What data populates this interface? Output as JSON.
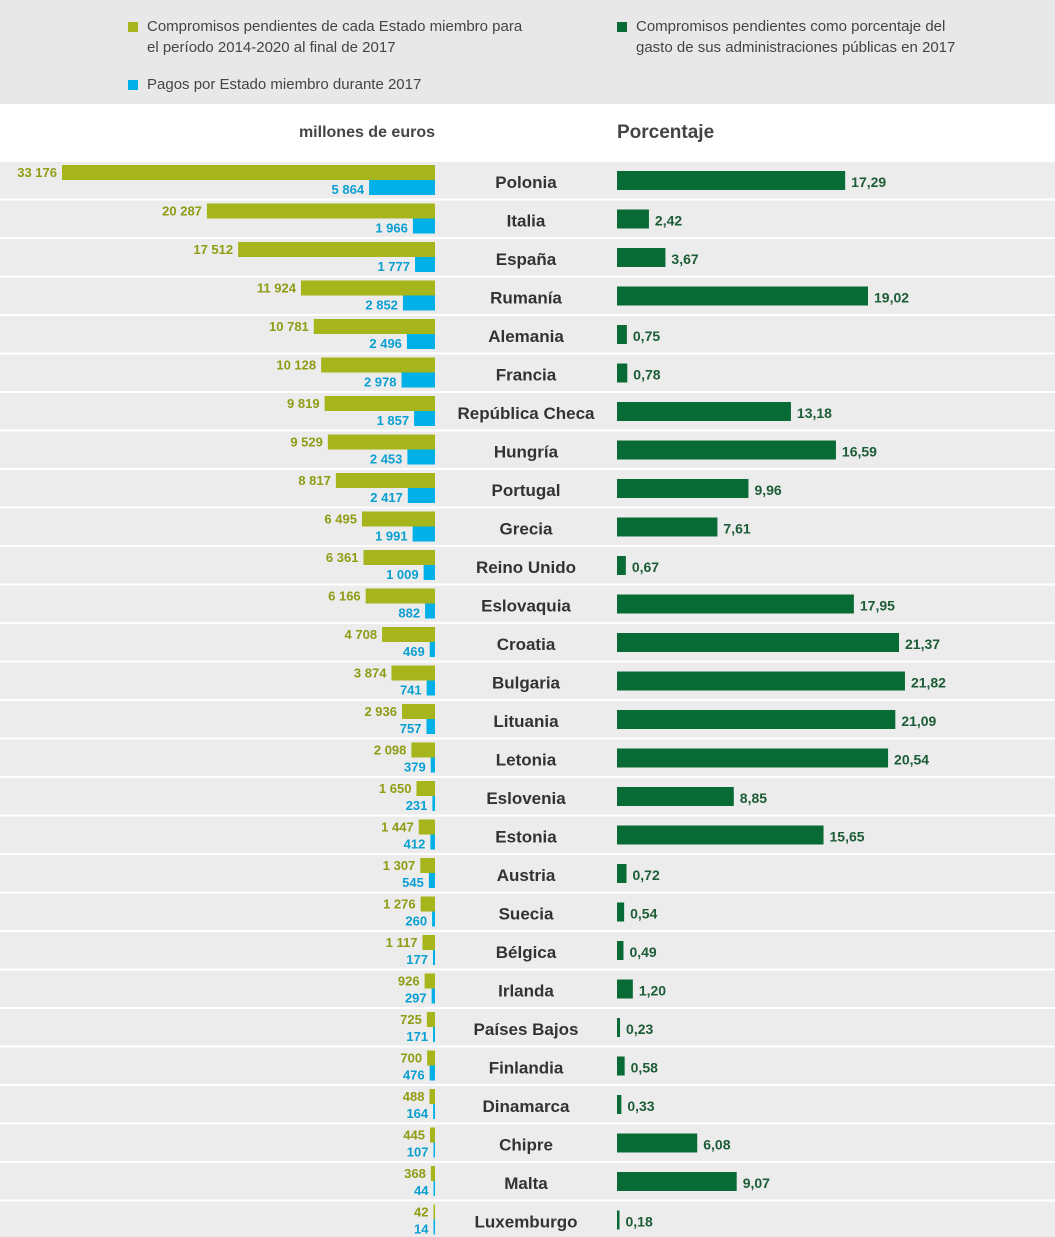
{
  "legend": {
    "commitments": "Compromisos pendientes de cada Estado miembro para el período 2014-2020 al final de 2017",
    "payments": "Pagos por Estado miembro durante 2017",
    "percentage": "Compromisos pendientes como porcentaje del gasto de sus administraciones públicas en 2017"
  },
  "headers": {
    "left": "millones de euros",
    "right": "Porcentaje"
  },
  "colors": {
    "commitments": "#a6b51b",
    "payments": "#00b0e6",
    "percentage": "#086b35",
    "row_band": "#ececec"
  },
  "chart_data": {
    "type": "bar",
    "categories": [
      "Polonia",
      "Italia",
      "España",
      "Rumanía",
      "Alemania",
      "Francia",
      "República Checa",
      "Hungría",
      "Portugal",
      "Grecia",
      "Reino Unido",
      "Eslovaquia",
      "Croatia",
      "Bulgaria",
      "Lituania",
      "Letonia",
      "Eslovenia",
      "Estonia",
      "Austria",
      "Suecia",
      "Bélgica",
      "Irlanda",
      "Países Bajos",
      "Finlandia",
      "Dinamarca",
      "Chipre",
      "Malta",
      "Luxemburgo"
    ],
    "series": [
      {
        "name": "Compromisos pendientes de cada Estado miembro para el período 2014-2020 al final de 2017",
        "unit": "millones de euros",
        "values": [
          33176,
          20287,
          17512,
          11924,
          10781,
          10128,
          9819,
          9529,
          8817,
          6495,
          6361,
          6166,
          4708,
          3874,
          2936,
          2098,
          1650,
          1447,
          1307,
          1276,
          1117,
          926,
          725,
          700,
          488,
          445,
          368,
          42
        ],
        "labels": [
          "33 176",
          "20 287",
          "17 512",
          "11 924",
          "10 781",
          "10 128",
          "9 819",
          "9 529",
          "8 817",
          "6 495",
          "6 361",
          "6 166",
          "4 708",
          "3 874",
          "2 936",
          "2 098",
          "1 650",
          "1 447",
          "1 307",
          "1 276",
          "1 117",
          "926",
          "725",
          "700",
          "488",
          "445",
          "368",
          "42"
        ]
      },
      {
        "name": "Pagos por Estado miembro durante 2017",
        "unit": "millones de euros",
        "values": [
          5864,
          1966,
          1777,
          2852,
          2496,
          2978,
          1857,
          2453,
          2417,
          1991,
          1009,
          882,
          469,
          741,
          757,
          379,
          231,
          412,
          545,
          260,
          177,
          297,
          171,
          476,
          164,
          107,
          44,
          14
        ],
        "labels": [
          "5 864",
          "1 966",
          "1 777",
          "2 852",
          "2 496",
          "2 978",
          "1 857",
          "2 453",
          "2 417",
          "1 991",
          "1 009",
          "882",
          "469",
          "741",
          "757",
          "379",
          "231",
          "412",
          "545",
          "260",
          "177",
          "297",
          "171",
          "476",
          "164",
          "107",
          "44",
          "14"
        ]
      },
      {
        "name": "Compromisos pendientes como porcentaje del gasto de sus administraciones públicas en 2017",
        "unit": "Porcentaje",
        "values": [
          17.29,
          2.42,
          3.67,
          19.02,
          0.75,
          0.78,
          13.18,
          16.59,
          9.96,
          7.61,
          0.67,
          17.95,
          21.37,
          21.82,
          21.09,
          20.54,
          8.85,
          15.65,
          0.72,
          0.54,
          0.49,
          1.2,
          0.23,
          0.58,
          0.33,
          6.08,
          9.07,
          0.18
        ],
        "labels": [
          "17,29",
          "2,42",
          "3,67",
          "19,02",
          "0,75",
          "0,78",
          "13,18",
          "16,59",
          "9,96",
          "7,61",
          "0,67",
          "17,95",
          "21,37",
          "21,82",
          "21,09",
          "20,54",
          "8,85",
          "15,65",
          "0,72",
          "0,54",
          "0,49",
          "1,20",
          "0,23",
          "0,58",
          "0,33",
          "6,08",
          "9,07",
          "0,18"
        ]
      }
    ]
  }
}
